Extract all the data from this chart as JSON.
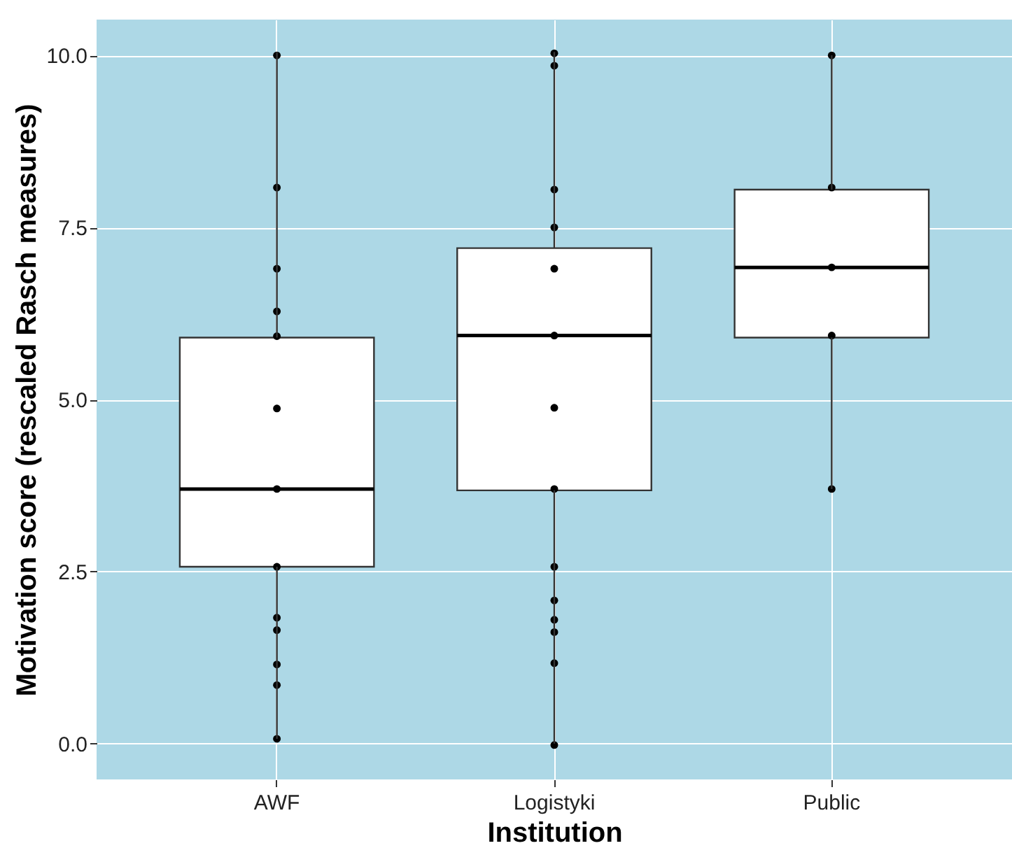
{
  "chart_data": {
    "type": "box",
    "xlabel": "Institution",
    "ylabel": "Motivation score (rescaled Rasch measures)",
    "categories": [
      "AWF",
      "Logistyki",
      "Public"
    ],
    "ylim": [
      -0.52,
      10.52
    ],
    "yticks": [
      {
        "value": 0,
        "label": "0.0"
      },
      {
        "value": 2.5,
        "label": "2.5"
      },
      {
        "value": 5,
        "label": "5.0"
      },
      {
        "value": 7.5,
        "label": "7.5"
      },
      {
        "value": 10,
        "label": "10.0"
      }
    ],
    "grid": true,
    "boxes": [
      {
        "low": 0.07,
        "q1": 2.57,
        "median": 3.7,
        "q3": 5.9,
        "high": 10.05
      },
      {
        "low": 0,
        "q1": 3.68,
        "median": 5.93,
        "q3": 7.2,
        "high": 10.05
      },
      {
        "low": 3.7,
        "q1": 5.9,
        "median": 6.92,
        "q3": 8.05,
        "high": 10
      }
    ],
    "series": [
      {
        "type": "scatter",
        "color": "#000000",
        "marker": "circle",
        "x": [
          "AWF",
          "AWF",
          "AWF",
          "AWF",
          "AWF",
          "AWF",
          "AWF",
          "AWF",
          "AWF",
          "AWF",
          "AWF",
          "AWF",
          "AWF",
          "Logistyki",
          "Logistyki",
          "Logistyki",
          "Logistyki",
          "Logistyki",
          "Logistyki",
          "Logistyki",
          "Logistyki",
          "Logistyki",
          "Logistyki",
          "Logistyki",
          "Logistyki",
          "Logistyki",
          "Logistyki",
          "Public",
          "Public",
          "Public",
          "Public",
          "Public"
        ],
        "values": [
          10,
          8.08,
          6.9,
          6.28,
          5.92,
          4.87,
          3.7,
          2.57,
          1.83,
          1.65,
          1.15,
          0.85,
          0.07,
          10.03,
          9.85,
          8.05,
          7.5,
          6.9,
          5.93,
          4.88,
          3.7,
          2.57,
          2.08,
          1.8,
          1.62,
          1.17,
          -0.02,
          10,
          8.08,
          6.92,
          5.93,
          3.7
        ]
      }
    ]
  }
}
